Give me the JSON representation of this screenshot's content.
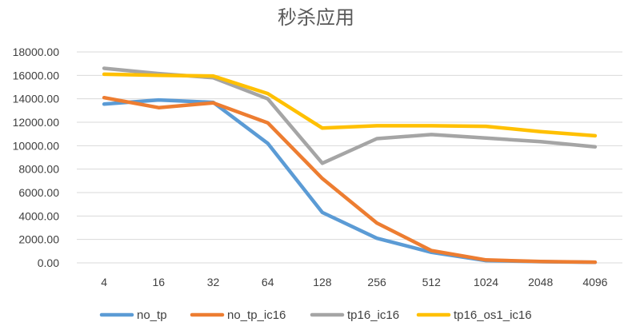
{
  "chart_data": {
    "type": "line",
    "title": "秒杀应用",
    "xlabel": "",
    "ylabel": "",
    "categories": [
      "4",
      "16",
      "32",
      "64",
      "128",
      "256",
      "512",
      "1024",
      "2048",
      "4096"
    ],
    "y_ticks": [
      "0.00",
      "2000.00",
      "4000.00",
      "6000.00",
      "8000.00",
      "10000.00",
      "12000.00",
      "14000.00",
      "16000.00",
      "18000.00"
    ],
    "ylim": [
      0,
      18000
    ],
    "grid": true,
    "legend_position": "bottom",
    "series": [
      {
        "name": "no_tp",
        "color": "#5b9bd5",
        "values": [
          13550,
          13900,
          13700,
          10200,
          4300,
          2100,
          900,
          200,
          100,
          50
        ]
      },
      {
        "name": "no_tp_ic16",
        "color": "#ed7d31",
        "values": [
          14100,
          13250,
          13650,
          11950,
          7200,
          3400,
          1050,
          250,
          120,
          60
        ]
      },
      {
        "name": "tp16_ic16",
        "color": "#a5a5a5",
        "values": [
          16600,
          16150,
          15800,
          14000,
          8500,
          10600,
          10950,
          10650,
          10350,
          9900
        ]
      },
      {
        "name": "tp16_os1_ic16",
        "color": "#ffc000",
        "values": [
          16100,
          16000,
          15950,
          14450,
          11500,
          11700,
          11700,
          11650,
          11200,
          10850
        ]
      }
    ]
  }
}
